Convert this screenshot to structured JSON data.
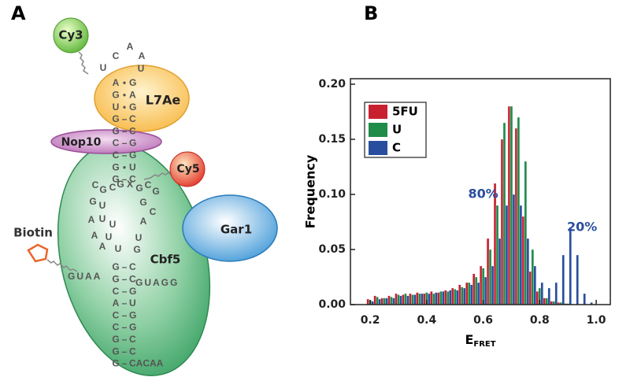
{
  "panel_a": {
    "label": "A",
    "nodes": [
      "Cy3",
      "L7Ae",
      "Nop10",
      "Cy5",
      "Gar1",
      "Cbf5",
      "Biotin"
    ],
    "loop": [
      "U",
      "C",
      "A",
      "A",
      "U"
    ],
    "upper_stem": [
      [
        "A",
        "•",
        "G"
      ],
      [
        "G",
        "•",
        "A"
      ],
      [
        "U",
        "•",
        "G"
      ],
      [
        "G",
        "–",
        "C"
      ],
      [
        "G",
        "–",
        "C"
      ],
      [
        "C",
        "–",
        "G"
      ],
      [
        "C",
        "–",
        "G"
      ],
      [
        "G",
        "•",
        "U"
      ],
      [
        "G",
        "–",
        "C"
      ]
    ],
    "pocket": [
      "C",
      "G",
      "C",
      "G",
      "X",
      "G",
      "C",
      "G",
      "G",
      "U",
      "A",
      "U",
      "U",
      "A",
      "U",
      "A",
      "U",
      "G",
      "C",
      "A",
      "U",
      "G"
    ],
    "tail_left": "GUAA",
    "tail_right": "GUAGG",
    "lower_stem": [
      [
        "G",
        "–",
        "C"
      ],
      [
        "G",
        "–",
        "C"
      ],
      [
        "C",
        "–",
        "G"
      ],
      [
        "A",
        "–",
        "U"
      ],
      [
        "C",
        "–",
        "G"
      ],
      [
        "C",
        "–",
        "G"
      ],
      [
        "G",
        "–",
        "C"
      ],
      [
        "G",
        "–",
        "C"
      ],
      [
        "G",
        "–",
        "CACAA"
      ]
    ]
  },
  "chart_data": {
    "panel_label": "B",
    "type": "histogram",
    "xlabel": {
      "main": "E",
      "sub": "FRET"
    },
    "ylabel": "Frequency",
    "bin_width": 0.025,
    "x": [
      0.2,
      0.225,
      0.25,
      0.275,
      0.3,
      0.325,
      0.35,
      0.375,
      0.4,
      0.425,
      0.45,
      0.475,
      0.5,
      0.525,
      0.55,
      0.575,
      0.6,
      0.625,
      0.65,
      0.675,
      0.7,
      0.725,
      0.75,
      0.775,
      0.8,
      0.825,
      0.85,
      0.875,
      0.9,
      0.925,
      0.95,
      0.975
    ],
    "series": [
      {
        "name": "5FU",
        "color": "#c8202f",
        "values": [
          0.005,
          0.008,
          0.006,
          0.008,
          0.01,
          0.009,
          0.01,
          0.011,
          0.01,
          0.012,
          0.011,
          0.013,
          0.015,
          0.018,
          0.02,
          0.028,
          0.035,
          0.06,
          0.11,
          0.15,
          0.18,
          0.16,
          0.08,
          0.03,
          0.012,
          0.006,
          0.003,
          0.002,
          0.001,
          0,
          0,
          0
        ]
      },
      {
        "name": "U",
        "color": "#1f8c4a",
        "values": [
          0.004,
          0.007,
          0.006,
          0.007,
          0.009,
          0.01,
          0.009,
          0.01,
          0.011,
          0.01,
          0.012,
          0.012,
          0.014,
          0.016,
          0.02,
          0.025,
          0.033,
          0.05,
          0.09,
          0.165,
          0.18,
          0.17,
          0.13,
          0.05,
          0.015,
          0.006,
          0.003,
          0.002,
          0.001,
          0,
          0,
          0
        ]
      },
      {
        "name": "C",
        "color": "#2a4e9e",
        "values": [
          0.003,
          0.005,
          0.006,
          0.006,
          0.008,
          0.008,
          0.009,
          0.01,
          0.01,
          0.011,
          0.012,
          0.013,
          0.013,
          0.015,
          0.018,
          0.02,
          0.025,
          0.035,
          0.06,
          0.09,
          0.1,
          0.09,
          0.06,
          0.035,
          0.02,
          0.015,
          0.02,
          0.045,
          0.07,
          0.045,
          0.01,
          0.002
        ]
      }
    ],
    "xlim": [
      0.13,
      1.05
    ],
    "xticks": [
      0.2,
      0.4,
      0.6,
      0.8,
      {
        "value": 1,
        "label": "1.0"
      }
    ],
    "ylim": [
      0,
      0.205
    ],
    "yticks": [
      {
        "value": 0,
        "label": "0.00"
      },
      {
        "value": 0.05,
        "label": "0.05"
      },
      {
        "value": 0.1,
        "label": "0.10"
      },
      {
        "value": 0.15,
        "label": "0.15"
      },
      {
        "value": 0.2,
        "label": "0.20"
      }
    ],
    "legend": "top-left",
    "annotations": [
      {
        "text": "80%",
        "x": 0.6,
        "y": 0.1,
        "color": "#2a4e9e"
      },
      {
        "text": "20%",
        "x": 0.95,
        "y": 0.07,
        "color": "#2a4e9e"
      }
    ]
  }
}
